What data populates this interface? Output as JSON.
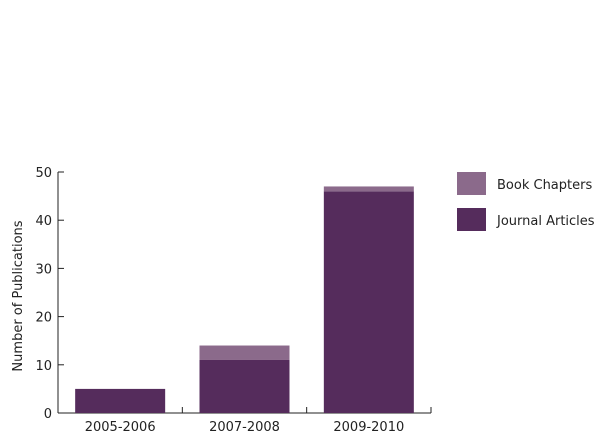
{
  "chart_data": {
    "type": "bar",
    "stacked": true,
    "categories": [
      "2005-2006",
      "2007-2008",
      "2009-2010"
    ],
    "series": [
      {
        "name": "Journal Articles",
        "values": [
          5,
          11,
          46
        ],
        "color": "#552c5c"
      },
      {
        "name": "Book Chapters",
        "values": [
          0,
          3,
          1
        ],
        "color": "#8b6a8b"
      }
    ],
    "title": "",
    "xlabel": "",
    "ylabel": "Number of Publications",
    "ylim": [
      0,
      50
    ],
    "yticks": [
      0,
      10,
      20,
      30,
      40,
      50
    ],
    "grid": false,
    "legend": {
      "position": "right",
      "entries": [
        "Book Chapters",
        "Journal Articles"
      ]
    }
  }
}
